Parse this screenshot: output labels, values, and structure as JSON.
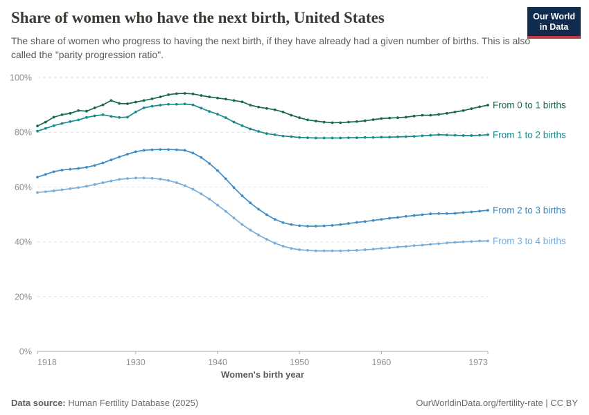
{
  "header": {
    "title": "Share of women who have the next birth, United States",
    "subtitle": "The share of women who progress to having the next birth, if they have already had a given number of births. This is also called the \"parity progression ratio\".",
    "logo": {
      "line1": "Our World",
      "line2": "in Data",
      "bg_color": "#112B4E",
      "accent_color": "#C0393E"
    }
  },
  "chart_data": {
    "type": "line",
    "xlabel": "Women's birth year",
    "ylabel": "",
    "ylim": [
      0,
      100
    ],
    "grid": "dashed-horizontal",
    "legend_position": "right-of-line-ends",
    "y_ticks": [
      {
        "value": 0,
        "label": "0%"
      },
      {
        "value": 20,
        "label": "20%"
      },
      {
        "value": 40,
        "label": "40%"
      },
      {
        "value": 60,
        "label": "60%"
      },
      {
        "value": 80,
        "label": "80%"
      },
      {
        "value": 100,
        "label": "100%"
      }
    ],
    "x_ticks": [
      {
        "value": 1918,
        "label": "1918"
      },
      {
        "value": 1930,
        "label": "1930"
      },
      {
        "value": 1940,
        "label": "1940"
      },
      {
        "value": 1950,
        "label": "1950"
      },
      {
        "value": 1960,
        "label": "1960"
      },
      {
        "value": 1973,
        "label": "1973"
      }
    ],
    "x_start": 1918,
    "x_end": 1973,
    "x_step": 1,
    "series": [
      {
        "name": "From 0 to 1 births",
        "color": "#18684E",
        "values": [
          82.3,
          83.7,
          85.5,
          86.4,
          86.9,
          87.9,
          87.7,
          88.9,
          90.0,
          91.6,
          90.5,
          90.4,
          91.0,
          91.6,
          92.2,
          92.9,
          93.7,
          94.1,
          94.2,
          94.0,
          93.4,
          92.9,
          92.5,
          92.1,
          91.6,
          91.1,
          89.9,
          89.2,
          88.7,
          88.2,
          87.4,
          86.2,
          85.3,
          84.5,
          84.1,
          83.7,
          83.5,
          83.5,
          83.7,
          83.9,
          84.2,
          84.6,
          85.0,
          85.2,
          85.3,
          85.5,
          85.9,
          86.2,
          86.2,
          86.5,
          86.9,
          87.4,
          87.9,
          88.6,
          89.3,
          89.9
        ]
      },
      {
        "name": "From 1 to 2 births",
        "color": "#178A8D",
        "values": [
          80.4,
          81.4,
          82.4,
          83.2,
          83.9,
          84.5,
          85.4,
          86.0,
          86.4,
          85.8,
          85.4,
          85.5,
          87.4,
          88.9,
          89.5,
          89.9,
          90.2,
          90.2,
          90.3,
          90.0,
          88.8,
          87.6,
          86.6,
          85.3,
          83.7,
          82.4,
          81.2,
          80.3,
          79.5,
          79.1,
          78.6,
          78.4,
          78.1,
          78.0,
          77.9,
          77.9,
          77.9,
          77.9,
          78.0,
          78.0,
          78.1,
          78.1,
          78.2,
          78.2,
          78.3,
          78.4,
          78.5,
          78.7,
          78.9,
          79.1,
          79.0,
          78.9,
          78.8,
          78.8,
          78.9,
          79.1
        ]
      },
      {
        "name": "From 2 to 3 births",
        "color": "#3D8CC4",
        "values": [
          63.6,
          64.6,
          65.6,
          66.2,
          66.5,
          66.8,
          67.2,
          67.9,
          68.8,
          69.9,
          71.0,
          72.0,
          72.9,
          73.4,
          73.6,
          73.7,
          73.7,
          73.6,
          73.4,
          72.4,
          70.8,
          68.6,
          66.0,
          63.0,
          59.8,
          56.8,
          54.2,
          51.9,
          49.9,
          48.2,
          47.0,
          46.3,
          45.9,
          45.7,
          45.7,
          45.8,
          46.0,
          46.3,
          46.7,
          47.1,
          47.4,
          47.8,
          48.2,
          48.6,
          48.9,
          49.3,
          49.6,
          49.9,
          50.2,
          50.3,
          50.3,
          50.4,
          50.7,
          50.9,
          51.2,
          51.5
        ]
      },
      {
        "name": "From 3 to 4 births",
        "color": "#77ADDA",
        "values": [
          58.0,
          58.3,
          58.6,
          59.0,
          59.4,
          59.8,
          60.3,
          60.9,
          61.6,
          62.2,
          62.8,
          63.1,
          63.3,
          63.3,
          63.2,
          62.9,
          62.4,
          61.6,
          60.5,
          59.2,
          57.5,
          55.6,
          53.4,
          51.1,
          48.7,
          46.3,
          44.3,
          42.5,
          40.9,
          39.5,
          38.4,
          37.6,
          37.1,
          36.9,
          36.7,
          36.7,
          36.7,
          36.7,
          36.8,
          36.9,
          37.1,
          37.3,
          37.6,
          37.8,
          38.1,
          38.3,
          38.6,
          38.8,
          39.1,
          39.3,
          39.6,
          39.8,
          40.0,
          40.1,
          40.3,
          40.3
        ]
      }
    ],
    "style": {
      "grid_color": "#e0e0e0",
      "axis_color": "#a9a9a9",
      "tick_label_color": "#8f8f8f",
      "axis_title_color": "#5b5b5b"
    }
  },
  "footer": {
    "source_label": "Data source:",
    "source_value": " Human Fertility Database (2025)",
    "rights": "OurWorldinData.org/fertility-rate | CC BY"
  }
}
